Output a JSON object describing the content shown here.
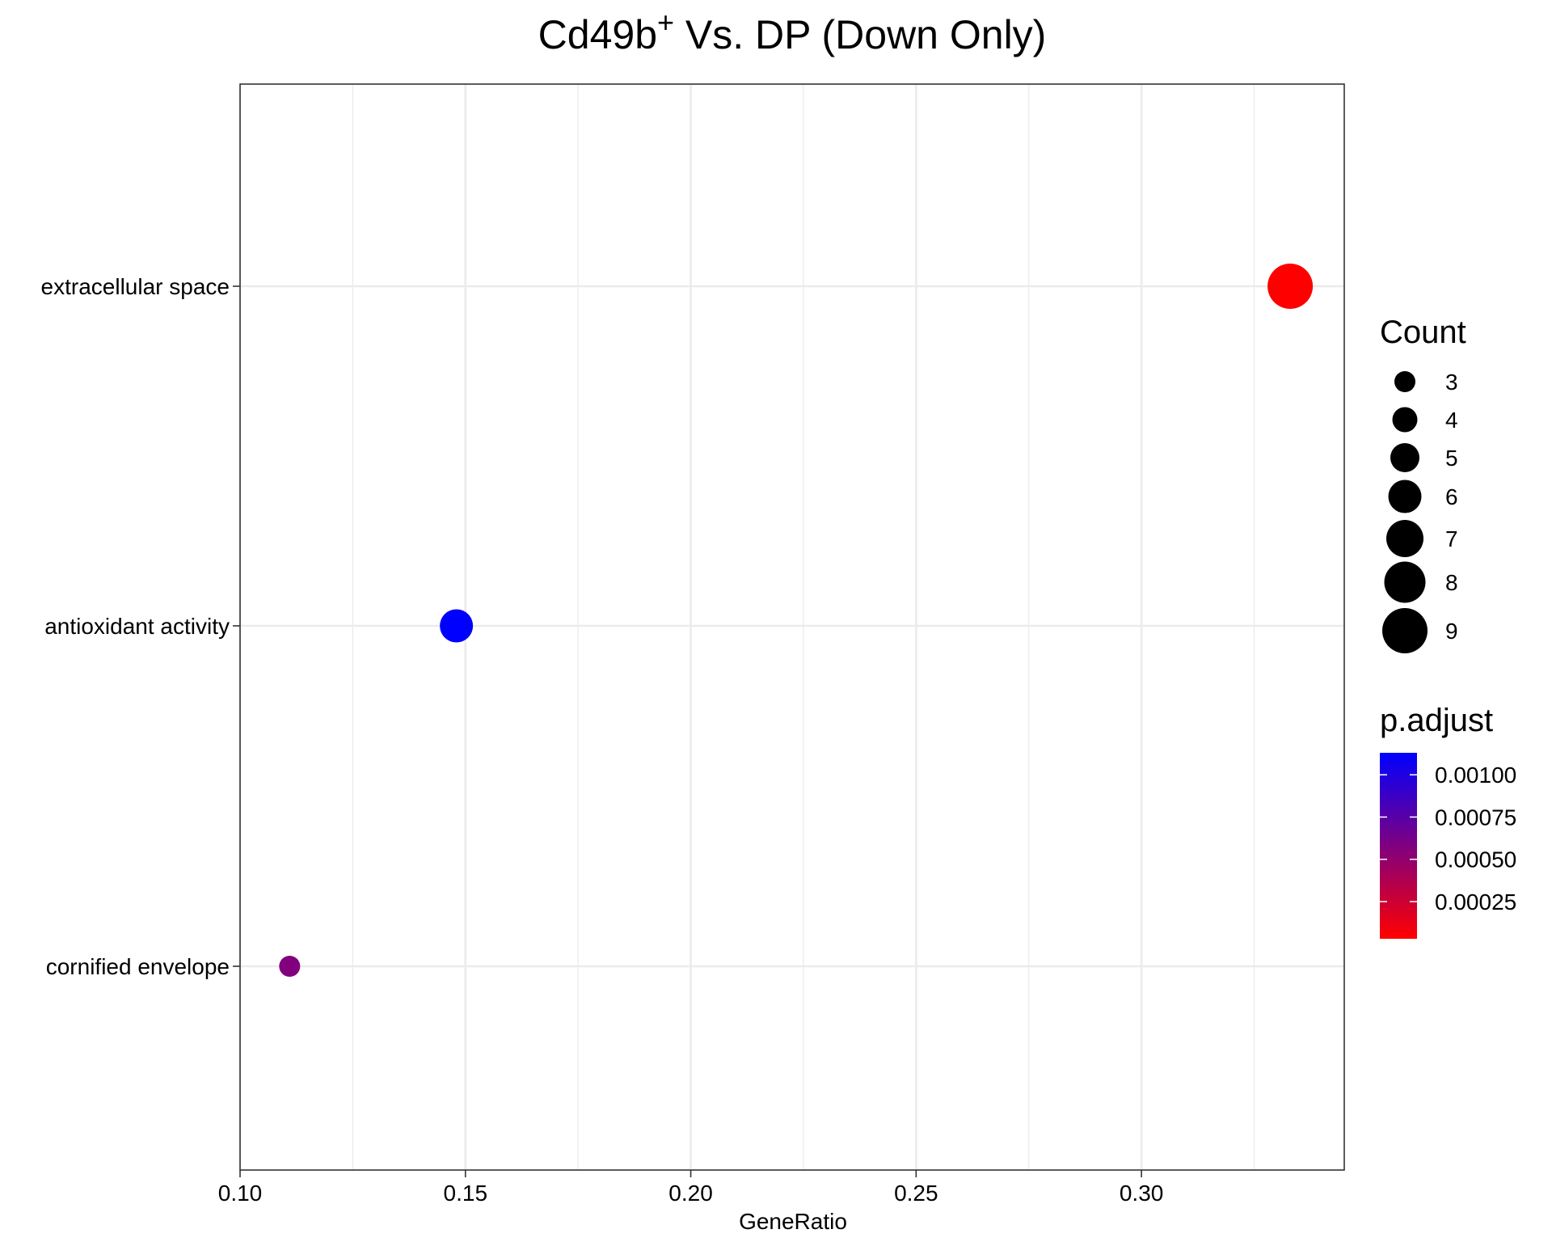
{
  "chart_data": {
    "type": "scatter",
    "title_main": "Cd49b",
    "title_sup": "+",
    "title_rest": " Vs. DP (Down Only)",
    "xlabel": "GeneRatio",
    "ylabel": "",
    "xlim": [
      0.1,
      0.345
    ],
    "x_ticks": [
      "0.10",
      "0.15",
      "0.20",
      "0.25",
      "0.30"
    ],
    "categories": [
      "extracellular space",
      "antioxidant activity",
      "cornified envelope"
    ],
    "points": [
      {
        "category": "extracellular space",
        "x": 0.333,
        "count": 9,
        "p_adjust": 3e-05
      },
      {
        "category": "antioxidant activity",
        "x": 0.148,
        "count": 6,
        "p_adjust": 0.00113
      },
      {
        "category": "cornified envelope",
        "x": 0.111,
        "count": 3,
        "p_adjust": 0.00057
      }
    ],
    "grid": true,
    "size_legend": {
      "title": "Count",
      "entries": [
        "3",
        "4",
        "5",
        "6",
        "7",
        "8",
        "9"
      ]
    },
    "color_legend": {
      "title": "p.adjust",
      "range": [
        3e-05,
        0.00113
      ],
      "tick_values": [
        0.001,
        0.00075,
        0.0005,
        0.00025
      ],
      "tick_labels": [
        "0.00100",
        "0.00075",
        "0.00050",
        "0.00025"
      ],
      "low_color": "#FF0000",
      "high_color": "#0000FF"
    },
    "legend_placement": "right"
  }
}
